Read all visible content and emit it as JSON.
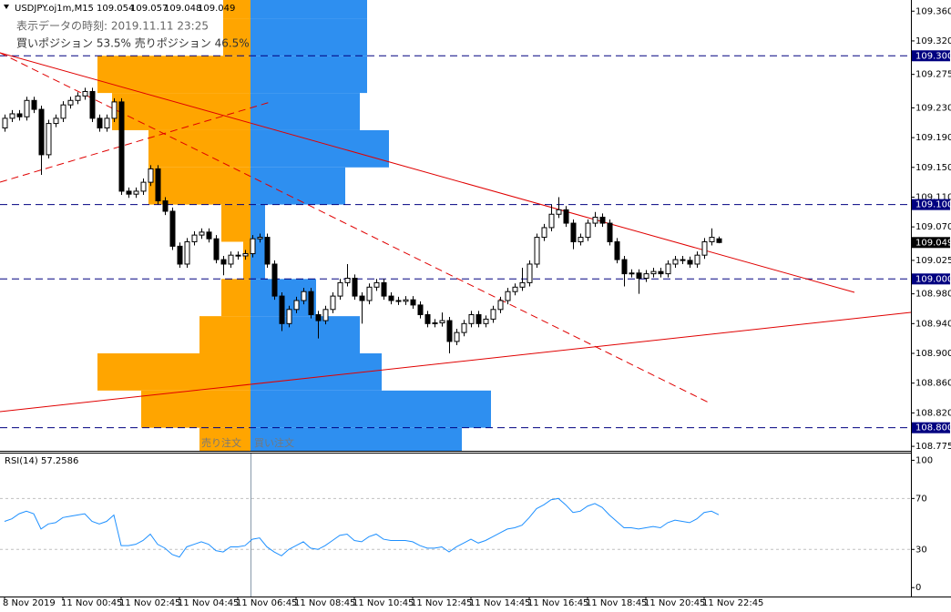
{
  "chart_data": [
    {
      "type": "candlestick",
      "title": "USDJPY.oj1m,M15",
      "info": [
        "表示データの時刻: 2019.11.11 23:25",
        "買いポジション 53.5% 売りポジション 46.5%"
      ],
      "categories": [
        "8 Nov 2019",
        null,
        null,
        null,
        null,
        null,
        null,
        null,
        "11 Nov 00:45",
        null,
        null,
        null,
        null,
        null,
        null,
        null,
        "11 Nov 02:45",
        null,
        null,
        null,
        null,
        null,
        null,
        null,
        "11 Nov 04:45",
        null,
        null,
        null,
        null,
        null,
        null,
        null,
        "11 Nov 06:45",
        null,
        null,
        null,
        null,
        null,
        null,
        null,
        "11 Nov 08:45",
        null,
        null,
        null,
        null,
        null,
        null,
        null,
        "11 Nov 10:45",
        null,
        null,
        null,
        null,
        null,
        null,
        null,
        "11 Nov 12:45",
        null,
        null,
        null,
        null,
        null,
        null,
        null,
        "11 Nov 14:45",
        null,
        null,
        null,
        null,
        null,
        null,
        null,
        "11 Nov 16:45",
        null,
        null,
        null,
        null,
        null,
        null,
        null,
        "11 Nov 18:45",
        null,
        null,
        null,
        null,
        null,
        null,
        null,
        "11 Nov 20:45",
        null,
        null,
        null,
        null,
        null,
        null,
        null,
        "11 Nov 22:45",
        null,
        null
      ],
      "open": [
        109.203,
        109.216,
        109.222,
        109.218,
        109.24,
        109.228,
        109.167,
        109.209,
        109.216,
        109.234,
        109.24,
        109.246,
        109.252,
        109.216,
        109.203,
        109.216,
        109.238,
        109.118,
        109.114,
        109.118,
        109.13,
        109.148,
        109.105,
        109.091,
        109.044,
        109.02,
        109.05,
        109.059,
        109.063,
        109.054,
        109.026,
        109.02,
        109.032,
        109.031,
        109.034,
        109.054,
        109.056,
        109.02,
        108.977,
        108.94,
        108.959,
        108.971,
        108.983,
        108.952,
        108.944,
        108.959,
        108.977,
        108.995,
        109.001,
        108.977,
        108.971,
        108.989,
        108.995,
        108.977,
        108.971,
        108.97,
        108.972,
        108.965,
        108.952,
        108.94,
        108.941,
        108.944,
        108.916,
        108.928,
        108.94,
        108.952,
        108.94,
        108.946,
        108.959,
        108.971,
        108.983,
        108.989,
        108.995,
        109.02,
        109.056,
        109.069,
        109.087,
        109.093,
        109.075,
        109.05,
        109.056,
        109.075,
        109.083,
        109.075,
        109.05,
        109.026,
        109.007,
        109.008,
        109.001,
        109.007,
        109.01,
        109.007,
        109.02,
        109.026,
        109.025,
        109.02,
        109.032,
        109.05,
        109.054
      ],
      "high": [
        109.221,
        109.227,
        109.227,
        109.245,
        109.245,
        109.233,
        109.214,
        109.221,
        109.239,
        109.245,
        109.251,
        109.257,
        109.257,
        109.221,
        109.221,
        109.243,
        109.243,
        109.123,
        109.123,
        109.135,
        109.153,
        109.153,
        109.11,
        109.096,
        109.049,
        109.055,
        109.064,
        109.068,
        109.068,
        109.059,
        109.031,
        109.037,
        109.037,
        109.039,
        109.059,
        109.061,
        109.061,
        109.025,
        108.982,
        108.964,
        108.976,
        108.988,
        108.988,
        108.957,
        108.964,
        108.982,
        109.0,
        109.02,
        109.006,
        108.982,
        108.994,
        109.0,
        109.0,
        108.982,
        108.976,
        108.977,
        108.977,
        108.97,
        108.957,
        108.946,
        108.955,
        108.949,
        108.933,
        108.945,
        108.957,
        108.957,
        108.951,
        108.964,
        108.976,
        108.988,
        108.994,
        109.015,
        109.025,
        109.061,
        109.074,
        109.1,
        109.11,
        109.098,
        109.08,
        109.061,
        109.08,
        109.09,
        109.088,
        109.08,
        109.055,
        109.031,
        109.013,
        109.013,
        109.012,
        109.015,
        109.015,
        109.025,
        109.031,
        109.031,
        109.03,
        109.037,
        109.055,
        109.068,
        109.057
      ],
      "low": [
        109.198,
        109.211,
        109.213,
        109.213,
        109.223,
        109.14,
        109.162,
        109.204,
        109.211,
        109.229,
        109.235,
        109.241,
        109.211,
        109.198,
        109.198,
        109.211,
        109.113,
        109.109,
        109.109,
        109.113,
        109.125,
        109.1,
        109.086,
        109.039,
        109.015,
        109.015,
        109.045,
        109.054,
        109.049,
        109.021,
        109.005,
        109.015,
        109.026,
        109.026,
        109.029,
        109.049,
        109.015,
        108.972,
        108.93,
        108.935,
        108.954,
        108.966,
        108.947,
        108.92,
        108.939,
        108.954,
        108.972,
        108.99,
        108.972,
        108.94,
        108.966,
        108.984,
        108.972,
        108.966,
        108.965,
        108.965,
        108.96,
        108.947,
        108.935,
        108.935,
        108.936,
        108.9,
        108.911,
        108.923,
        108.935,
        108.935,
        108.935,
        108.941,
        108.954,
        108.966,
        108.978,
        108.984,
        108.99,
        109.015,
        109.051,
        109.064,
        109.082,
        109.07,
        109.04,
        109.045,
        109.051,
        109.07,
        109.07,
        109.045,
        109.021,
        108.99,
        109.002,
        108.98,
        108.996,
        109.002,
        109.002,
        109.002,
        109.015,
        109.02,
        109.015,
        109.015,
        109.027,
        109.045,
        109.048
      ],
      "close": [
        109.216,
        109.222,
        109.218,
        109.24,
        109.228,
        109.167,
        109.209,
        109.216,
        109.234,
        109.24,
        109.246,
        109.252,
        109.216,
        109.203,
        109.216,
        109.238,
        109.118,
        109.114,
        109.118,
        109.13,
        109.148,
        109.105,
        109.091,
        109.044,
        109.02,
        109.05,
        109.059,
        109.063,
        109.054,
        109.026,
        109.02,
        109.032,
        109.031,
        109.034,
        109.054,
        109.056,
        109.02,
        108.977,
        108.94,
        108.959,
        108.971,
        108.983,
        108.952,
        108.944,
        108.959,
        108.977,
        108.995,
        109.001,
        108.977,
        108.971,
        108.989,
        108.995,
        108.977,
        108.971,
        108.97,
        108.972,
        108.965,
        108.952,
        108.94,
        108.941,
        108.944,
        108.916,
        108.928,
        108.94,
        108.952,
        108.94,
        108.946,
        108.959,
        108.971,
        108.983,
        108.989,
        108.995,
        109.02,
        109.056,
        109.069,
        109.087,
        109.093,
        109.075,
        109.05,
        109.056,
        109.075,
        109.083,
        109.075,
        109.05,
        109.026,
        109.007,
        109.008,
        109.001,
        109.007,
        109.01,
        109.007,
        109.02,
        109.026,
        109.025,
        109.02,
        109.032,
        109.05,
        109.056,
        109.049
      ],
      "ylim": [
        108.769,
        109.375
      ],
      "yticks": [
        {
          "value": 109.36,
          "label": "109.360"
        },
        {
          "value": 109.32,
          "label": "109.320"
        },
        {
          "value": 109.275,
          "label": "109.275"
        },
        {
          "value": 109.23,
          "label": "109.230"
        },
        {
          "value": 109.19,
          "label": "109.190"
        },
        {
          "value": 109.15,
          "label": "109.150"
        },
        {
          "value": 109.11,
          "label": "109.110"
        },
        {
          "value": 109.07,
          "label": "109.070"
        },
        {
          "value": 109.025,
          "label": "109.025"
        },
        {
          "value": 108.98,
          "label": "108.980"
        },
        {
          "value": 108.94,
          "label": "108.940"
        },
        {
          "value": 108.9,
          "label": "108.900"
        },
        {
          "value": 108.86,
          "label": "108.860"
        },
        {
          "value": 108.82,
          "label": "108.820"
        },
        {
          "value": 108.775,
          "label": "108.775"
        }
      ],
      "levels": [
        {
          "value": 109.3,
          "label": "109.300"
        },
        {
          "value": 109.1,
          "label": "109.100"
        },
        {
          "value": 109.0,
          "label": "109.000"
        },
        {
          "value": 108.8,
          "label": "108.800"
        }
      ],
      "level_color": "#000080",
      "order_book": {
        "bins": [
          108.75,
          108.8,
          108.85,
          108.9,
          108.95,
          109.0,
          109.05,
          109.1,
          109.15,
          109.2,
          109.25,
          109.3,
          109.35,
          109.4
        ],
        "series": [
          {
            "name": "売り注文",
            "color": "#ffa500",
            "values": [
              56,
              120,
              168,
              56,
              32,
              8,
              32,
              112,
              112,
              152,
              168,
              30,
              30
            ]
          },
          {
            "name": "買い注文",
            "color": "#2e8ff0",
            "values": [
              232,
              264,
              144,
              120,
              72,
              16,
              16,
              104,
              152,
              120,
              128,
              128,
              128
            ]
          }
        ]
      }
    },
    {
      "type": "line",
      "title": "RSI(14)",
      "color": "#1e90ff",
      "values": [
        52,
        54,
        58,
        60,
        58,
        46,
        50,
        51,
        55,
        56,
        57,
        58,
        52,
        50,
        52,
        57,
        33,
        33,
        34,
        37,
        42,
        34,
        31,
        26,
        24,
        32,
        34,
        36,
        34,
        29,
        28,
        32,
        32,
        33,
        38,
        39,
        32,
        28,
        25,
        30,
        33,
        36,
        31,
        30,
        33,
        37,
        41,
        42,
        37,
        36,
        40,
        42,
        38,
        37,
        37,
        37,
        36,
        33,
        31,
        31,
        32,
        28,
        32,
        35,
        38,
        35,
        37,
        40,
        43,
        46,
        47,
        49,
        55,
        62,
        65,
        69,
        70,
        65,
        59,
        60,
        64,
        66,
        63,
        57,
        52,
        47,
        47,
        46,
        47,
        48,
        47,
        51,
        53,
        52,
        51,
        54,
        59,
        60,
        57.2586
      ],
      "ylim": [
        -7,
        106
      ],
      "yticks": [
        100,
        70,
        30,
        0
      ]
    }
  ]
}
